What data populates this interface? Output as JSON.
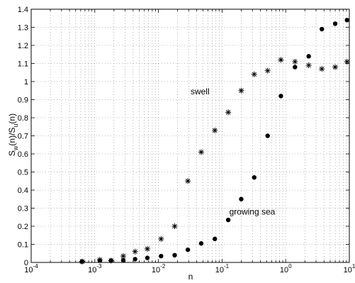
{
  "chart_data": {
    "type": "scatter",
    "xlabel": "n",
    "ylabel": "S",
    "ylabel_sub1": "w",
    "ylabel_mid": "(n)/S",
    "ylabel_sub2": "u",
    "ylabel_end": "(n)",
    "x_scale": "log",
    "xlim": [
      0.0001,
      10
    ],
    "ylim": [
      0,
      1.4
    ],
    "grid": true,
    "x_tick_labels": [
      {
        "base": "10",
        "exp": "-4",
        "value": 0.0001
      },
      {
        "base": "10",
        "exp": "-3",
        "value": 0.001
      },
      {
        "base": "10",
        "exp": "-2",
        "value": 0.01
      },
      {
        "base": "10",
        "exp": "-1",
        "value": 0.1
      },
      {
        "base": "10",
        "exp": "0",
        "value": 1
      },
      {
        "base": "10",
        "exp": "1",
        "value": 10
      }
    ],
    "y_ticks": [
      0,
      0.1,
      0.2,
      0.3,
      0.4,
      0.5,
      0.6,
      0.7,
      0.8,
      0.9,
      1,
      1.1,
      1.2,
      1.3,
      1.4
    ],
    "y_tick_labels": [
      "0",
      "0.1",
      "0.2",
      "0.3",
      "0.4",
      "0.5",
      "0.6",
      "0.7",
      "0.8",
      "0.9",
      "1",
      "1.1",
      "1.2",
      "1.3",
      "1.4"
    ],
    "annotations": [
      {
        "text": "swell",
        "x": 0.032,
        "y": 0.93
      },
      {
        "text": "growing sea",
        "x": 0.13,
        "y": 0.265
      }
    ],
    "series": [
      {
        "marker": "asterisk",
        "x": [
          0.00063,
          0.0012,
          0.0018,
          0.0028,
          0.0043,
          0.0067,
          0.011,
          0.018,
          0.029,
          0.047,
          0.077,
          0.125,
          0.2,
          0.32,
          0.52,
          0.84,
          1.4,
          2.3,
          3.7,
          6.0,
          9.2
        ],
        "y": [
          0.005,
          0.015,
          0.01,
          0.035,
          0.06,
          0.075,
          0.13,
          0.2,
          0.45,
          0.61,
          0.73,
          0.83,
          0.95,
          1.04,
          1.06,
          1.12,
          1.11,
          1.09,
          1.07,
          1.08,
          1.11
        ]
      },
      {
        "marker": "dot",
        "x": [
          0.00063,
          0.0012,
          0.0018,
          0.0028,
          0.0043,
          0.0067,
          0.011,
          0.018,
          0.029,
          0.047,
          0.077,
          0.125,
          0.2,
          0.32,
          0.52,
          0.84,
          1.4,
          2.3,
          3.7,
          6.0,
          9.2
        ],
        "y": [
          0.005,
          0.01,
          0.01,
          0.012,
          0.018,
          0.025,
          0.035,
          0.04,
          0.07,
          0.105,
          0.13,
          0.235,
          0.35,
          0.47,
          0.7,
          0.92,
          1.08,
          1.14,
          1.29,
          1.32,
          1.34
        ]
      }
    ]
  }
}
